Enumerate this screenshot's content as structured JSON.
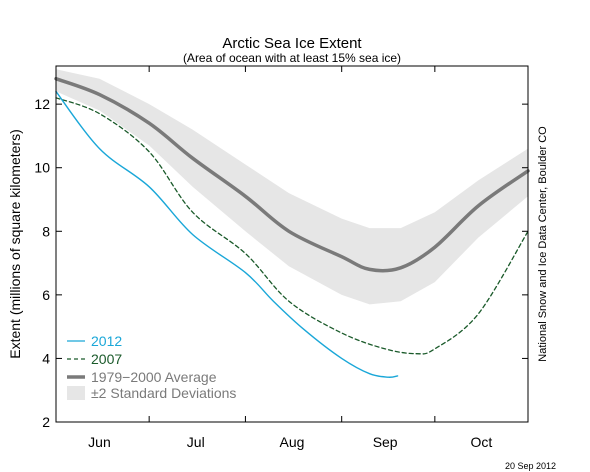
{
  "chart_data": {
    "type": "line",
    "title": "Arctic Sea Ice Extent",
    "subtitle": "(Area of ocean with at least 15% sea ice)",
    "ylabel": "Extent (millions of square kilometers)",
    "ylim": [
      2,
      13.2
    ],
    "yticks": [
      2,
      4,
      6,
      8,
      10,
      12
    ],
    "xlim": [
      "2012-06-01",
      "2012-10-31"
    ],
    "month_labels": [
      {
        "label": "Jun",
        "date": "2012-06-15"
      },
      {
        "label": "Jul",
        "date": "2012-07-16"
      },
      {
        "label": "Aug",
        "date": "2012-08-16"
      },
      {
        "label": "Sep",
        "date": "2012-09-15"
      },
      {
        "label": "Oct",
        "date": "2012-10-16"
      }
    ],
    "legend_position": "bottom-left",
    "credit": "National Snow and Ice Data Center, Boulder CO",
    "date_stamp": "20 Sep 2012",
    "band": {
      "name": "±2 Standard Deviations",
      "color": "#e6e6e6",
      "x": [
        "2012-06-01",
        "2012-06-15",
        "2012-07-01",
        "2012-07-15",
        "2012-08-01",
        "2012-08-15",
        "2012-09-01",
        "2012-09-10",
        "2012-09-20",
        "2012-10-01",
        "2012-10-15",
        "2012-10-31"
      ],
      "upper": [
        13.1,
        12.8,
        12.0,
        11.2,
        10.1,
        9.2,
        8.4,
        8.1,
        8.1,
        8.6,
        9.6,
        10.6
      ],
      "lower": [
        12.4,
        11.8,
        10.7,
        9.4,
        8.0,
        6.9,
        6.0,
        5.7,
        5.8,
        6.4,
        7.8,
        9.1
      ]
    },
    "series": [
      {
        "name": "1979−2000 Average",
        "color": "#7a7a7a",
        "style": "solid-thick",
        "x": [
          "2012-06-01",
          "2012-06-15",
          "2012-07-01",
          "2012-07-15",
          "2012-08-01",
          "2012-08-15",
          "2012-09-01",
          "2012-09-10",
          "2012-09-20",
          "2012-10-01",
          "2012-10-15",
          "2012-10-31"
        ],
        "y": [
          12.8,
          12.3,
          11.4,
          10.3,
          9.1,
          8.0,
          7.2,
          6.8,
          6.85,
          7.5,
          8.8,
          9.9
        ]
      },
      {
        "name": "2007",
        "color": "#1a5a2a",
        "style": "dashed",
        "x": [
          "2012-06-01",
          "2012-06-15",
          "2012-07-01",
          "2012-07-15",
          "2012-08-01",
          "2012-08-15",
          "2012-09-01",
          "2012-09-15",
          "2012-09-25",
          "2012-10-01",
          "2012-10-15",
          "2012-10-31"
        ],
        "y": [
          12.2,
          11.7,
          10.5,
          8.6,
          7.3,
          5.8,
          4.8,
          4.3,
          4.15,
          4.3,
          5.4,
          8.0
        ]
      },
      {
        "name": "2012",
        "color": "#1aa7d8",
        "style": "solid",
        "x": [
          "2012-06-01",
          "2012-06-15",
          "2012-07-01",
          "2012-07-15",
          "2012-08-01",
          "2012-08-10",
          "2012-08-20",
          "2012-09-01",
          "2012-09-10",
          "2012-09-16",
          "2012-09-19"
        ],
        "y": [
          12.4,
          10.6,
          9.4,
          7.9,
          6.7,
          5.8,
          4.9,
          4.0,
          3.52,
          3.41,
          3.45
        ]
      }
    ]
  }
}
